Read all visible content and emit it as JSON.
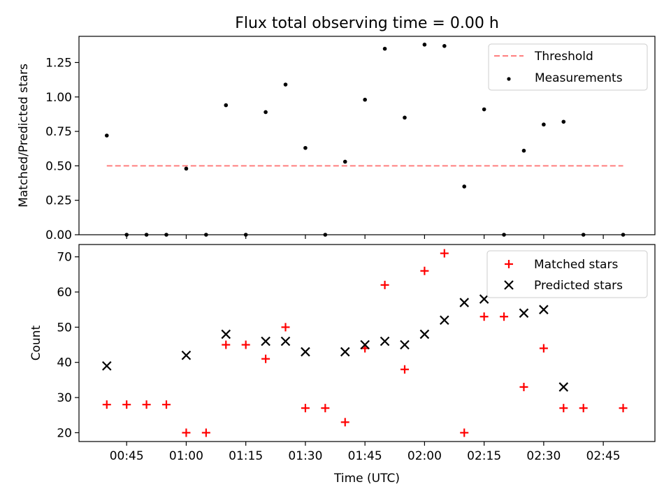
{
  "chart_data": [
    {
      "type": "scatter",
      "title": "Flux total observing time = 0.00 h",
      "xlabel": "",
      "ylabel": "Matched/Predicted stars",
      "ylim": [
        0,
        1.44
      ],
      "yticks": [
        "0.00",
        "0.25",
        "0.50",
        "0.75",
        "1.00",
        "1.25"
      ],
      "ytick_values": [
        0,
        0.25,
        0.5,
        0.75,
        1.0,
        1.25
      ],
      "grid": false,
      "legend_placement": "top-right",
      "colors": {
        "threshold": "#ff7f7f",
        "measurements": "#000000"
      },
      "series": [
        {
          "name": "Threshold",
          "kind": "dashed-line",
          "x": [
            "00:40",
            "02:50"
          ],
          "y": [
            0.5,
            0.5
          ]
        },
        {
          "name": "Measurements",
          "kind": "dots",
          "x": [
            "00:40",
            "00:45",
            "00:50",
            "00:55",
            "01:00",
            "01:05",
            "01:10",
            "01:15",
            "01:20",
            "01:25",
            "01:30",
            "01:35",
            "01:40",
            "01:45",
            "01:50",
            "01:55",
            "02:00",
            "02:05",
            "02:10",
            "02:15",
            "02:20",
            "02:25",
            "02:30",
            "02:35",
            "02:40",
            "02:50"
          ],
          "y": [
            0.72,
            0.0,
            0.0,
            0.0,
            0.48,
            0.0,
            0.94,
            0.0,
            0.89,
            1.09,
            0.63,
            0.0,
            0.53,
            0.98,
            1.35,
            0.85,
            1.38,
            1.37,
            0.35,
            0.91,
            0.0,
            0.61,
            0.8,
            0.82,
            0.0,
            0.0
          ]
        }
      ]
    },
    {
      "type": "scatter",
      "title": "",
      "xlabel": "Time (UTC)",
      "ylabel": "Count",
      "ylim": [
        17.5,
        73.5
      ],
      "yticks": [
        "20",
        "30",
        "40",
        "50",
        "60",
        "70"
      ],
      "ytick_values": [
        20,
        30,
        40,
        50,
        60,
        70
      ],
      "xlim": [
        "00:33",
        "02:58"
      ],
      "xticks": [
        "00:45",
        "01:00",
        "01:15",
        "01:30",
        "01:45",
        "02:00",
        "02:15",
        "02:30",
        "02:45"
      ],
      "grid": false,
      "legend_placement": "top-right",
      "colors": {
        "matched": "#ff0000",
        "predicted": "#000000"
      },
      "series": [
        {
          "name": "Matched stars",
          "kind": "plus",
          "x": [
            "00:40",
            "00:45",
            "00:50",
            "00:55",
            "01:00",
            "01:05",
            "01:10",
            "01:15",
            "01:20",
            "01:25",
            "01:30",
            "01:35",
            "01:40",
            "01:45",
            "01:50",
            "01:55",
            "02:00",
            "02:05",
            "02:10",
            "02:15",
            "02:20",
            "02:25",
            "02:30",
            "02:35",
            "02:40",
            "02:50"
          ],
          "y": [
            28,
            28,
            28,
            28,
            20,
            20,
            45,
            45,
            41,
            50,
            27,
            27,
            23,
            44,
            62,
            38,
            66,
            71,
            20,
            53,
            53,
            33,
            44,
            27,
            27,
            27
          ]
        },
        {
          "name": "Predicted stars",
          "kind": "cross",
          "x": [
            "00:40",
            "01:00",
            "01:10",
            "01:20",
            "01:25",
            "01:30",
            "01:40",
            "01:45",
            "01:50",
            "01:55",
            "02:00",
            "02:05",
            "02:10",
            "02:15",
            "02:25",
            "02:30",
            "02:35"
          ],
          "y": [
            39,
            42,
            48,
            46,
            46,
            43,
            43,
            45,
            46,
            45,
            48,
            52,
            57,
            58,
            54,
            55,
            33
          ]
        }
      ]
    }
  ]
}
